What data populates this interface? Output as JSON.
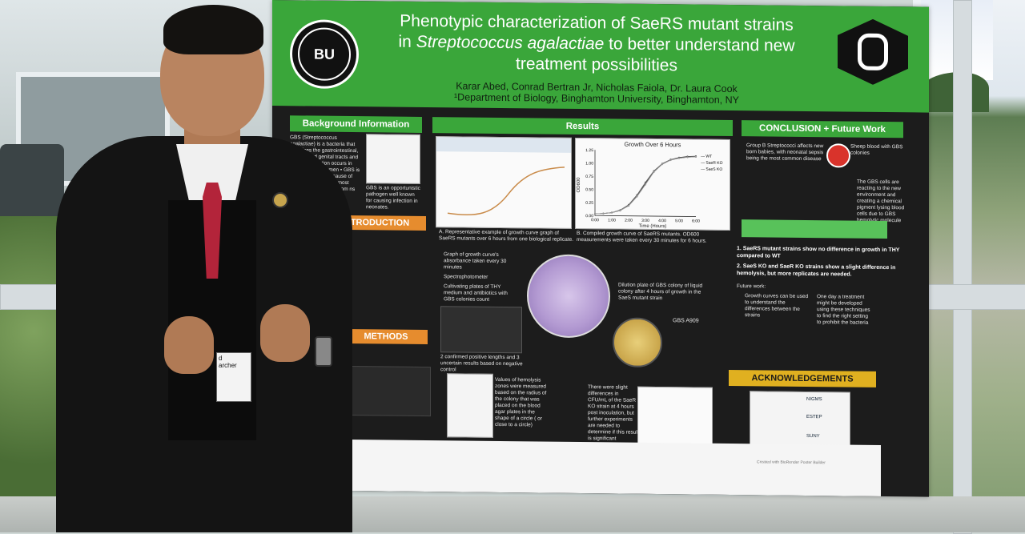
{
  "poster": {
    "title_line1": "Phenotypic characterization of SaeRS mutant strains",
    "title_line2_pre": "in ",
    "title_line2_italic": "Streptococcus agalactiae",
    "title_line2_post": " to better understand new",
    "title_line3": "treatment possibilities",
    "authors": "Karar Abed, Conrad Bertran Jr, Nicholas Faiola, Dr. Laura Cook",
    "affiliation": "¹Department of Biology, Binghamton University, Binghamton, NY",
    "logo_left_text": "BINGHAMTON UNIVERSITY",
    "sections": {
      "background": "Background Information",
      "introduction": "INTRODUCTION",
      "methods": "METHODS",
      "results": "Results",
      "conclusion": "CONCLUSION + Future Work",
      "acknowledgements": "ACKNOWLEDGEMENTS"
    },
    "background_text": "GBS (Streptococcus agalactiae) is a bacteria that colonizes the gastrointestinal, urinary, and genital tracts and GBS colonization occurs in about 20% of women • GBS is the most common cause of neonatal sepsis and most common ns isolated from ns with sepsis",
    "background_caption": "GBS is an opportunistic pathogen well known for causing infection in neonates.",
    "growth_chart_title": "Growth Over 6 Hours",
    "growth_chart_xlabel": "Time (Hours)",
    "growth_chart_ylabel": "OD600",
    "caption_a": "A. Representative example of growth curve graph of SaeRS mutants over 6 hours from one biological replicate.",
    "caption_b": "B. Compiled growth curve of SaeRS mutants. OD600 measurements were taken every 30 minutes for 6 hours.",
    "method_bullets": [
      "Graph of growth curve's absorbance taken every 30 minutes",
      "Spectrophotometer",
      "Cultivating plates of THY medium and antibiotics with GBS colonies count"
    ],
    "dilution_text": "Dilution plate of GBS colony of liquid colony after 4 hours of growth in the SaeS mutant strain",
    "plate_label": "GBS A909",
    "pcr_text": "2 confirmed positive lengths and 3 uncertain results based on negative control",
    "hemolysis_text": "Values of hemolysis zones were measured based on the radius of the colony that was placed on the blood agar plates in the shape of a circle ( or close to a circle)",
    "slight_text": "There were slight differences in CFU/mL of the SaeR KO strain at 4 hours post inoculation, but further experiments are needed to determine if this result is significant",
    "overall_text": "Group B Streptococci affects new born babies, with neonatal sepsis being the most common disease",
    "sheep_text": "Sheep blood with GBS colonies",
    "gbs_cells_text": "The GBS cells are reacting to the new environment and creating a chemical pigment lysing blood cells due to GBS hemolytic molecule",
    "findings": [
      "1. SaeRS mutant strains show no difference in growth in THY compared to WT",
      "2. SaeS KO and SaeR KO strains show a slight difference in hemolysis, but more replicates are needed."
    ],
    "future_work": "Future work:",
    "future_text_left": "Growth curves can be used to understand the differences between the strains",
    "future_text_right": "One day a treatment might be developed using these techniques to find the right setting to prohibit the bacteria",
    "footer_credit": "Created with BioRender Poster Builder",
    "ack_logos": [
      "NIGMS",
      "ESTEP",
      "SUNY"
    ]
  },
  "chart_data": {
    "type": "line",
    "title": "Growth Over 6 Hours",
    "xlabel": "Time (Hours)",
    "ylabel": "OD600",
    "x": [
      "0:00",
      "0:30",
      "1:00",
      "1:30",
      "2:00",
      "2:30",
      "3:00",
      "3:30",
      "4:00",
      "4:30",
      "5:00",
      "5:30",
      "6:00"
    ],
    "series": [
      {
        "name": "WT",
        "values": [
          0.03,
          0.04,
          0.06,
          0.1,
          0.2,
          0.38,
          0.62,
          0.85,
          1.0,
          1.08,
          1.12,
          1.14,
          1.15
        ]
      },
      {
        "name": "SaeR KO",
        "values": [
          0.03,
          0.04,
          0.06,
          0.11,
          0.21,
          0.4,
          0.64,
          0.86,
          1.0,
          1.08,
          1.11,
          1.13,
          1.14
        ]
      },
      {
        "name": "SaeS KO",
        "values": [
          0.03,
          0.04,
          0.06,
          0.1,
          0.19,
          0.37,
          0.6,
          0.84,
          0.99,
          1.07,
          1.11,
          1.13,
          1.14
        ]
      }
    ],
    "ylim": [
      0,
      1.25
    ],
    "yticks": [
      "0.00",
      "0.25",
      "0.50",
      "0.75",
      "1.00",
      "1.25"
    ],
    "xticks": [
      "0:00",
      "1:00",
      "2:00",
      "3:00",
      "4:00",
      "5:00",
      "6:00"
    ]
  },
  "person": {
    "badge_line1": "d",
    "badge_line2": "archer"
  },
  "colors": {
    "poster_green": "#3aa63a",
    "poster_dark": "#1c1c1c",
    "intro_orange": "#e68c2e",
    "ack_yellow": "#e0b020",
    "tie_red": "#b3243a"
  }
}
